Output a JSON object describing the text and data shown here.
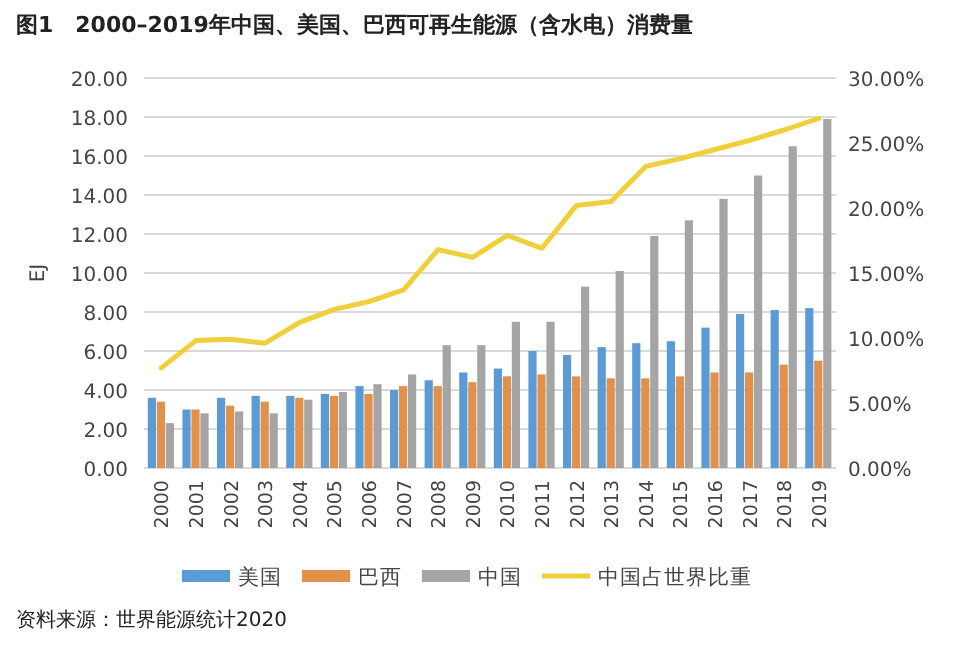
{
  "chart_data": {
    "type": "bar",
    "title": "图1　2000–2019年中国、美国、巴西可再生能源（含水电）消费量",
    "ylabel": "EJ",
    "categories": [
      "2000",
      "2001",
      "2002",
      "2003",
      "2004",
      "2005",
      "2006",
      "2007",
      "2008",
      "2009",
      "2010",
      "2011",
      "2012",
      "2013",
      "2014",
      "2015",
      "2016",
      "2017",
      "2018",
      "2019"
    ],
    "series": [
      {
        "name": "美国",
        "color": "#5b9bd5",
        "values": [
          3.6,
          3.0,
          3.6,
          3.7,
          3.7,
          3.8,
          4.2,
          4.0,
          4.5,
          4.9,
          5.1,
          6.0,
          5.8,
          6.2,
          6.4,
          6.5,
          7.2,
          7.9,
          8.1,
          8.2
        ]
      },
      {
        "name": "巴西",
        "color": "#e2914c",
        "values": [
          3.4,
          3.0,
          3.2,
          3.4,
          3.6,
          3.7,
          3.8,
          4.2,
          4.2,
          4.4,
          4.7,
          4.8,
          4.7,
          4.6,
          4.6,
          4.7,
          4.9,
          4.9,
          5.3,
          5.5
        ]
      },
      {
        "name": "中国",
        "color": "#a5a5a5",
        "values": [
          2.3,
          2.8,
          2.9,
          2.8,
          3.5,
          3.9,
          4.3,
          4.8,
          6.3,
          6.3,
          7.5,
          7.5,
          9.3,
          10.1,
          11.9,
          12.7,
          13.8,
          15.0,
          16.5,
          17.9
        ]
      },
      {
        "name": "中国占世界比重",
        "color": "#f0d03a",
        "type": "line",
        "axis": "y2",
        "values": [
          7.7,
          9.8,
          9.9,
          9.6,
          11.2,
          12.2,
          12.8,
          13.7,
          16.8,
          16.2,
          17.9,
          16.9,
          20.2,
          20.5,
          23.2,
          23.8,
          24.5,
          25.2,
          26.0,
          26.9
        ]
      }
    ],
    "ylim": [
      0,
      20
    ],
    "yticks": [
      {
        "value": 0,
        "label": "0.00"
      },
      {
        "value": 2,
        "label": "2.00"
      },
      {
        "value": 4,
        "label": "4.00"
      },
      {
        "value": 6,
        "label": "6.00"
      },
      {
        "value": 8,
        "label": "8.00"
      },
      {
        "value": 10,
        "label": "10.00"
      },
      {
        "value": 12,
        "label": "12.00"
      },
      {
        "value": 14,
        "label": "14.00"
      },
      {
        "value": 16,
        "label": "16.00"
      },
      {
        "value": 18,
        "label": "18.00"
      },
      {
        "value": 20,
        "label": "20.00"
      }
    ],
    "y2lim": [
      0,
      30
    ],
    "y2ticks": [
      {
        "value": 0,
        "label": "0.00%"
      },
      {
        "value": 5,
        "label": "5.00%"
      },
      {
        "value": 10,
        "label": "10.00%"
      },
      {
        "value": 15,
        "label": "15.00%"
      },
      {
        "value": 20,
        "label": "20.00%"
      },
      {
        "value": 25,
        "label": "25.00%"
      },
      {
        "value": 30,
        "label": "30.00%"
      }
    ],
    "grid": "y",
    "legend": "bottom",
    "annotations": [
      "资料来源：世界能源统计2020"
    ]
  }
}
